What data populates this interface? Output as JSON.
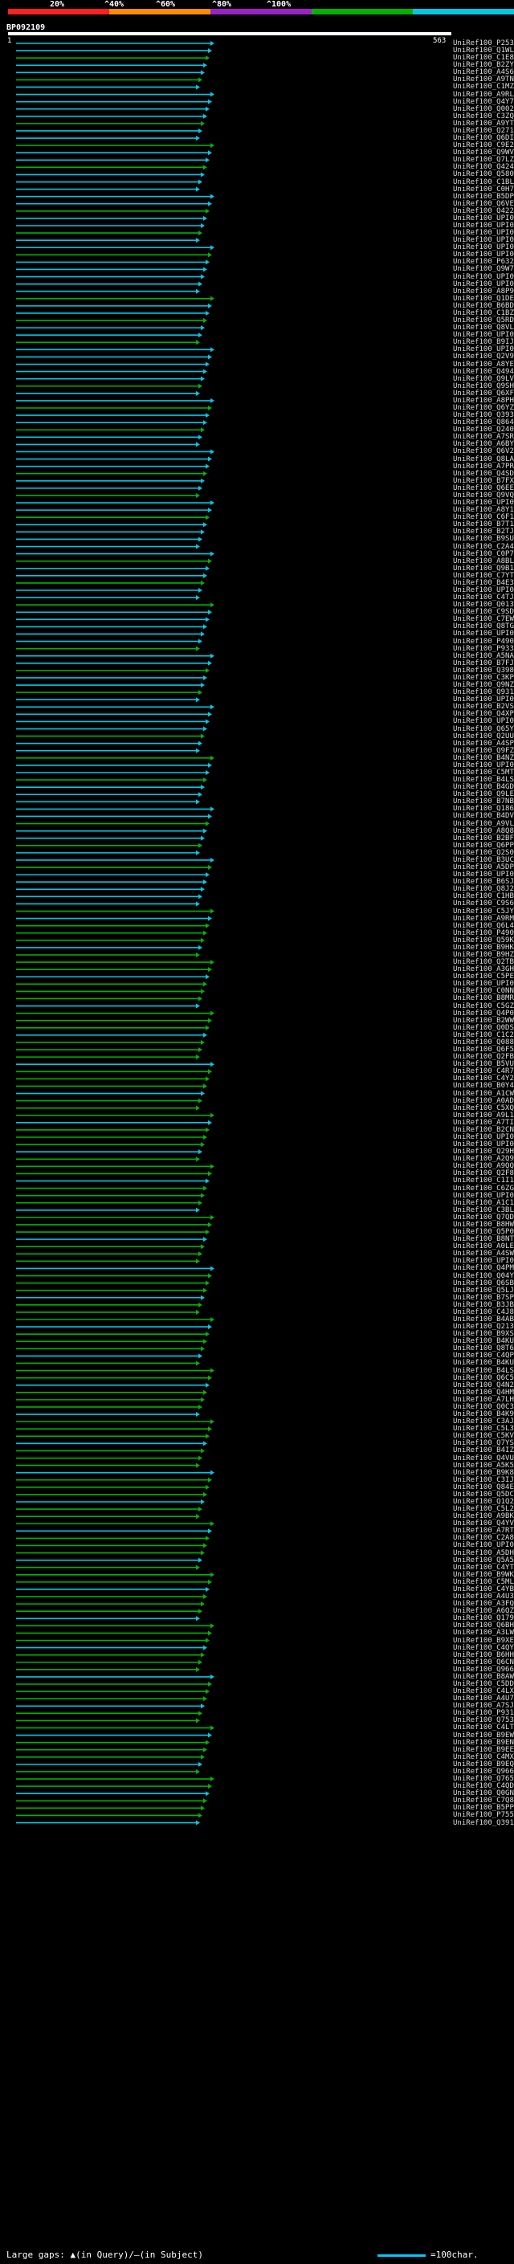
{
  "query": {
    "name": "BP092109",
    "start": "1",
    "end": "563"
  },
  "scale": {
    "ticks": [
      "20%",
      "^40%",
      "^60%",
      "^80%",
      "^100%"
    ],
    "colors": [
      "#ff2020",
      "#ff8c00",
      "#a020c8",
      "#00b400",
      "#00c8e6"
    ]
  },
  "legend": {
    "gaps_text": "Large gaps: ▲(in Query)/—(in Subject)",
    "scale_text": "=100char."
  },
  "hits": [
    "UniRef100_P25387",
    "UniRef100_Q1WLW3",
    "UniRef100_C1E856",
    "UniRef100_B2ZYE5",
    "UniRef100_A4S6H8",
    "UniRef100_A9TNV3",
    "UniRef100_C1MZG8",
    "UniRef100_A9RL45",
    "UniRef100_Q4Y7M4",
    "UniRef100_Q00227",
    "UniRef100_C3ZQF5",
    "UniRef100_A9YT42",
    "UniRef100_Q27164",
    "UniRef100_Q6DIV0",
    "UniRef100_C9E2R1",
    "UniRef100_Q9WVP6",
    "UniRef100_Q7LZL4",
    "UniRef100_Q4248",
    "UniRef100_Q58069",
    "UniRef100_C1BLX6",
    "UniRef100_C0H7D9",
    "UniRef100_B5DPX3",
    "UniRef100_Q6VE17",
    "UniRef100_Q42249",
    "UniRef100_UPI000...",
    "UniRef100_UPI000...",
    "UniRef100_UPI000...",
    "UniRef100_UPI000...",
    "UniRef100_UPI000...",
    "UniRef100_UPI000...",
    "UniRef100_P63244",
    "UniRef100_Q9W711",
    "UniRef100_UPI000...",
    "UniRef100_UPI000...",
    "UniRef100_A8P926",
    "UniRef100_Q1DE0",
    "UniRef100_B6BD72",
    "UniRef100_C1BZM4",
    "UniRef100_Q5RDP9",
    "UniRef100_Q8VL9",
    "UniRef100_UPI000...",
    "UniRef100_B9IJ59",
    "UniRef100_UPI000...",
    "UniRef100_Q2V991",
    "UniRef100_A8YEM9",
    "UniRef100_Q49403",
    "UniRef100_Q9LV28",
    "UniRef100_Q9SHU1",
    "UniRef100_Q6XFY5",
    "UniRef100_A8PHV5",
    "UniRef100_Q6YZ17",
    "UniRef100_Q39336",
    "UniRef100_Q864T1",
    "UniRef100_Q24076",
    "UniRef100_A7SRH5",
    "UniRef100_A6BY59",
    "UniRef100_Q6V2W7",
    "UniRef100_Q8LAF2",
    "UniRef100_A7PRC5",
    "UniRef100_Q4SD58",
    "UniRef100_B7FXM5",
    "UniRef100_Q6EEB0",
    "UniRef100_Q9VQL8",
    "UniRef100_UPI000...",
    "UniRef100_A8Y1N7",
    "UniRef100_C6F171",
    "UniRef100_B7T1N8",
    "UniRef100_B2TJ08",
    "UniRef100_B9SU88",
    "UniRef100_C2A456",
    "UniRef100_C0P7F3",
    "UniRef100_A8BL15",
    "UniRef100_Q9B1P9",
    "UniRef100_C7YT79",
    "UniRef100_B4E3C3",
    "UniRef100_UPI000...",
    "UniRef100_C4TJD3",
    "UniRef100_Q01369",
    "UniRef100_C9SD11",
    "UniRef100_C7EWL6",
    "UniRef100_Q8TG66",
    "UniRef100_UPI000...",
    "UniRef100_P49026",
    "UniRef100_P93340",
    "UniRef100_A5NAU9",
    "UniRef100_B7FJT0",
    "UniRef100_Q39836",
    "UniRef100_C3KPC5",
    "UniRef100_Q9NZ07",
    "UniRef100_Q93134",
    "UniRef100_UPI000...",
    "UniRef100_B2VS63",
    "UniRef100_Q4XP30",
    "UniRef100_UPI000...",
    "UniRef100_Q65YU3",
    "UniRef100_Q2UUD1",
    "UniRef100_A4SP51",
    "UniRef100_Q9FZ66",
    "UniRef100_B4NZ46",
    "UniRef100_UPI000...",
    "UniRef100_C5MTW1",
    "UniRef100_B4LSR9",
    "UniRef100_B4GD59",
    "UniRef100_Q9LEI0",
    "UniRef100_B7NBP5",
    "UniRef100_Q18640",
    "UniRef100_B4DV02",
    "UniRef100_A9VLT8",
    "UniRef100_A8Q8S3",
    "UniRef100_B2BF24",
    "UniRef100_Q6PPH2",
    "UniRef100_Q2S0Q0",
    "UniRef100_B3UCL3",
    "UniRef100_A5DPD5",
    "UniRef100_UPI000...",
    "UniRef100_B6SJ21",
    "UniRef100_Q8J225",
    "UniRef100_C1HB19",
    "UniRef100_C9S6D5",
    "UniRef100_C5JYQ4",
    "UniRef100_A9RMZ5",
    "UniRef100_Q6L4F8",
    "UniRef100_P49027",
    "UniRef100_Q59KA1",
    "UniRef100_B9HKD5",
    "UniRef100_B9HZB4",
    "UniRef100_Q2TBR4",
    "UniRef100_A3GHT4",
    "UniRef100_C5PEE7",
    "UniRef100_UPI000...",
    "UniRef100_C0NNG2",
    "UniRef100_B8MRK5",
    "UniRef100_C5GZJ3",
    "UniRef100_Q4P0W9",
    "UniRef100_B2WW27",
    "UniRef100_Q0DSB4",
    "UniRef100_C1C2S1",
    "UniRef100_Q08856",
    "UniRef100_Q6F5I2",
    "UniRef100_Q2FBK6",
    "UniRef100_B5VUC3",
    "UniRef100_C4R757",
    "UniRef100_C4Y2D4",
    "UniRef100_B0Y4S0",
    "UniRef100_A1CWZ9",
    "UniRef100_A0AD10",
    "UniRef100_C5XQU1",
    "UniRef100_A9L1T1",
    "UniRef100_A7TIZ5",
    "UniRef100_B2CNY1",
    "UniRef100_UPI000...",
    "UniRef100_UPI000...",
    "UniRef100_Q29HB0",
    "UniRef100_A2Q9R8",
    "UniRef100_A9QQ85",
    "UniRef100_Q2F8K5",
    "UniRef100_C1I126",
    "UniRef100_C6ZGW2",
    "UniRef100_UPI000...",
    "UniRef100_A1C1W1",
    "UniRef100_C3BL05",
    "UniRef100_Q7QD75",
    "UniRef100_B8HWF2",
    "UniRef100_Q5P0F0",
    "UniRef100_B8NT05",
    "UniRef100_A0LE98",
    "UniRef100_A4SWT1",
    "UniRef100_UPI000...",
    "UniRef100_Q4PMS2",
    "UniRef100_Q04Y42",
    "UniRef100_Q6SB51",
    "UniRef100_Q5LJ00",
    "UniRef100_B7SP50",
    "UniRef100_B3JBK9",
    "UniRef100_C4J8S6",
    "UniRef100_B4AB00",
    "UniRef100_Q21315",
    "UniRef100_B9XSU1",
    "UniRef100_B4KUT6",
    "UniRef100_Q8T6T3",
    "UniRef100_C4QP69",
    "UniRef100_B4KUP4",
    "UniRef100_B4LS55",
    "UniRef100_Q6C592",
    "UniRef100_Q4N208",
    "UniRef100_Q4HM19",
    "UniRef100_A7LH77",
    "UniRef100_Q0C3V4",
    "UniRef100_B4K9F2",
    "UniRef100_C3AJF5",
    "UniRef100_C5L3C7",
    "UniRef100_C5KVJ9",
    "UniRef100_Q7YST8",
    "UniRef100_B4IZB0",
    "UniRef100_Q4VU13",
    "UniRef100_A5K514",
    "UniRef100_B9K8G2",
    "UniRef100_C3IJ2",
    "UniRef100_Q84ER9",
    "UniRef100_Q5DCH7",
    "UniRef100_Q1Q281",
    "UniRef100_C5L225",
    "UniRef100_A9BKM7",
    "UniRef100_Q4YVD0",
    "UniRef100_A7RT19",
    "UniRef100_C2A892",
    "UniRef100_UPI000...",
    "UniRef100_A5DH08",
    "UniRef100_Q5A546",
    "UniRef100_C4YT14",
    "UniRef100_B9WK13",
    "UniRef100_C5MLL3",
    "UniRef100_C4YBT9",
    "UniRef100_A4U342",
    "UniRef100_A3FQ74",
    "UniRef100_A6QZ63",
    "UniRef100_Q179P0",
    "UniRef100_Q6BH96",
    "UniRef100_A3LWM7",
    "UniRef100_B9XE32",
    "UniRef100_C4QYC3",
    "UniRef100_B6HHX9",
    "UniRef100_Q6CN17",
    "UniRef100_Q96653",
    "UniRef100_B8AW40",
    "UniRef100_C5DDD7",
    "UniRef100_C4LXG2",
    "UniRef100_A4U7N2",
    "UniRef100_A7SJC1",
    "UniRef100_P93103",
    "UniRef100_Q75353",
    "UniRef100_C4LT38",
    "UniRef100_B9EWW0",
    "UniRef100_B9EN23",
    "UniRef100_B9EE50",
    "UniRef100_C4MXM2",
    "UniRef100_B9EQQ3",
    "UniRef100_Q96654",
    "UniRef100_Q76549",
    "UniRef100_C4QDZ0",
    "UniRef100_Q0GN69",
    "UniRef100_C7Q894",
    "UniRef100_B5PPY1",
    "UniRef100_P75511",
    "UniRef100_Q39141"
  ]
}
